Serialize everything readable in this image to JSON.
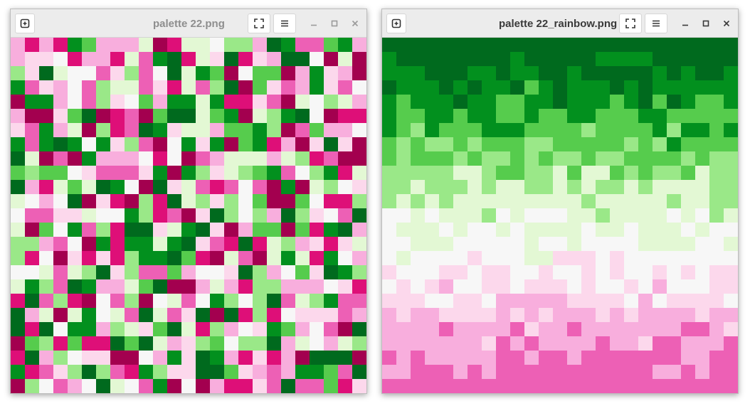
{
  "windows": [
    {
      "title": "palette 22.png",
      "active": false,
      "image": {
        "rows": 25,
        "cols": 25,
        "layout": "random",
        "palette": [
          "#8e0152",
          "#c51b7d",
          "#de77ae",
          "#f1b6da",
          "#fde0ef",
          "#f7f7f7",
          "#e6f5d0",
          "#b8e186",
          "#7fbc41",
          "#4d9221",
          "#276419"
        ],
        "colors": [
          "#a3004f",
          "#de0f78",
          "#ed60b5",
          "#f8aedd",
          "#fcd8ec",
          "#f7f7f7",
          "#e3f8d4",
          "#9ae888",
          "#56cc4d",
          "#02901e",
          "#006a1e"
        ]
      }
    },
    {
      "title": "palette 22_rainbow.png",
      "active": true,
      "image": {
        "rows": 25,
        "cols": 25,
        "layout": "sorted-bands",
        "colors": [
          "#006a1e",
          "#02901e",
          "#56cc4d",
          "#9ae888",
          "#e3f8d4",
          "#f7f7f7",
          "#fcd8ec",
          "#f8aedd",
          "#ed60b5"
        ]
      }
    }
  ]
}
